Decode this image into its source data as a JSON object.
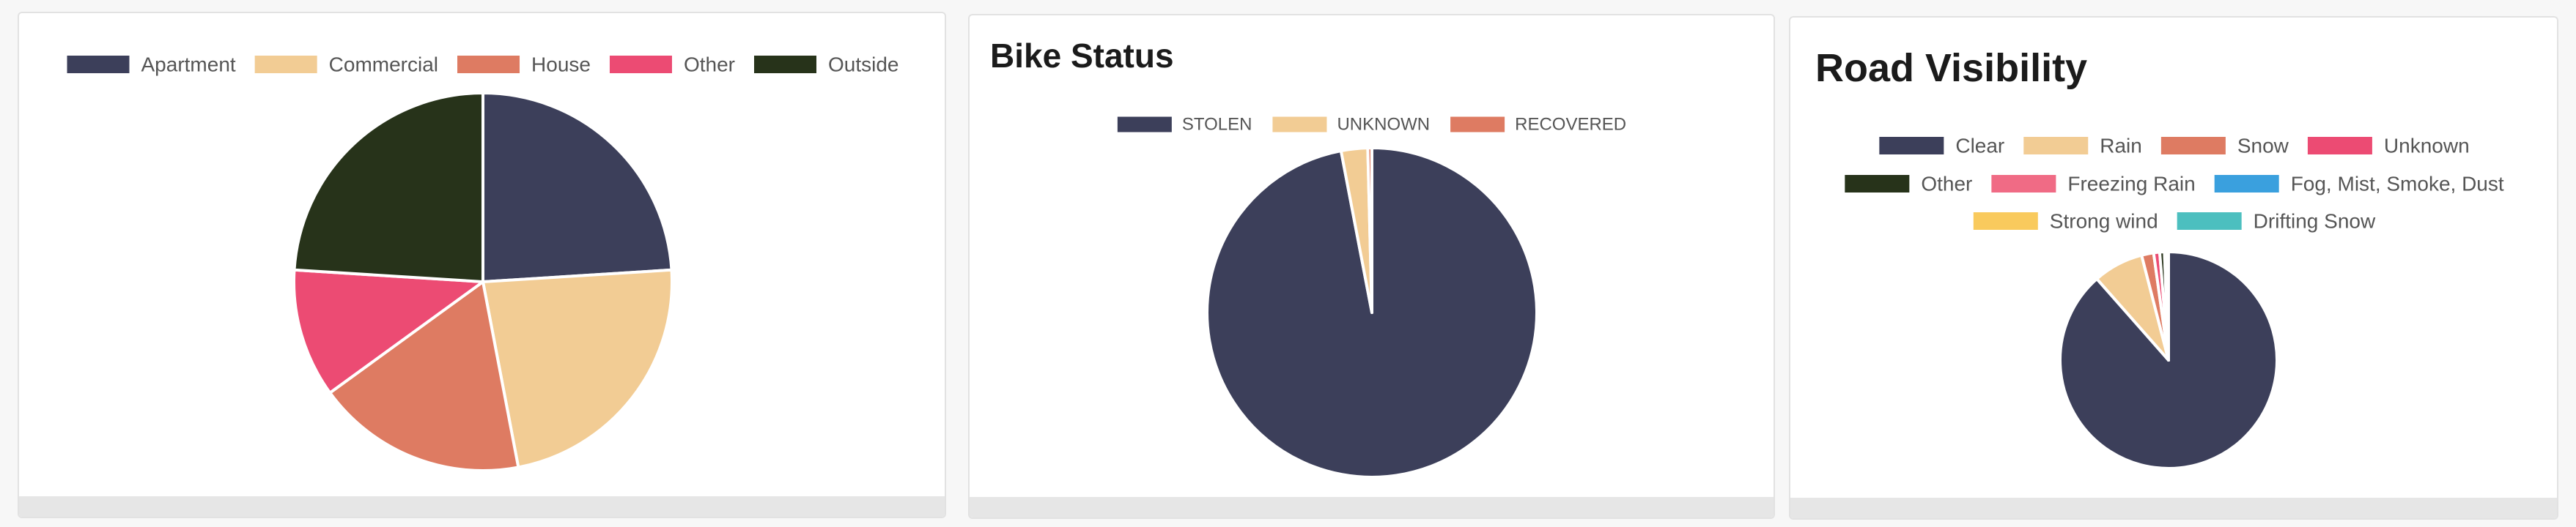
{
  "cards": [
    {
      "title": "",
      "chart_data": {
        "type": "pie",
        "title": "",
        "categories": [
          "Apartment",
          "Commercial",
          "House",
          "Other",
          "Outside"
        ],
        "values": [
          24,
          23,
          18,
          11,
          24
        ],
        "colors": [
          "#3c3f5a",
          "#f2cc94",
          "#de7b62",
          "#ec4b73",
          "#27331a"
        ],
        "legend": "top"
      }
    },
    {
      "title": "Bike Status",
      "chart_data": {
        "type": "pie",
        "title": "Bike Status",
        "categories": [
          "STOLEN",
          "UNKNOWN",
          "RECOVERED"
        ],
        "values": [
          97.0,
          2.6,
          0.4
        ],
        "colors": [
          "#3c3f5a",
          "#f2cc94",
          "#de7b62"
        ],
        "legend": "top"
      }
    },
    {
      "title": "Road Visibility",
      "chart_data": {
        "type": "pie",
        "title": "Road Visibility",
        "categories": [
          "Clear",
          "Rain",
          "Snow",
          "Unknown",
          "Other",
          "Freezing Rain",
          "Fog, Mist, Smoke, Dust",
          "Strong wind",
          "Drifting Snow"
        ],
        "values": [
          88.5,
          7.5,
          1.8,
          0.9,
          0.7,
          0.2,
          0.2,
          0.1,
          0.1
        ],
        "colors": [
          "#3c3f5a",
          "#f2cc94",
          "#de7b62",
          "#ec4b73",
          "#27331a",
          "#f06b85",
          "#3aa0de",
          "#f9ca5d",
          "#4cbfbf"
        ],
        "legend": "top"
      }
    }
  ]
}
